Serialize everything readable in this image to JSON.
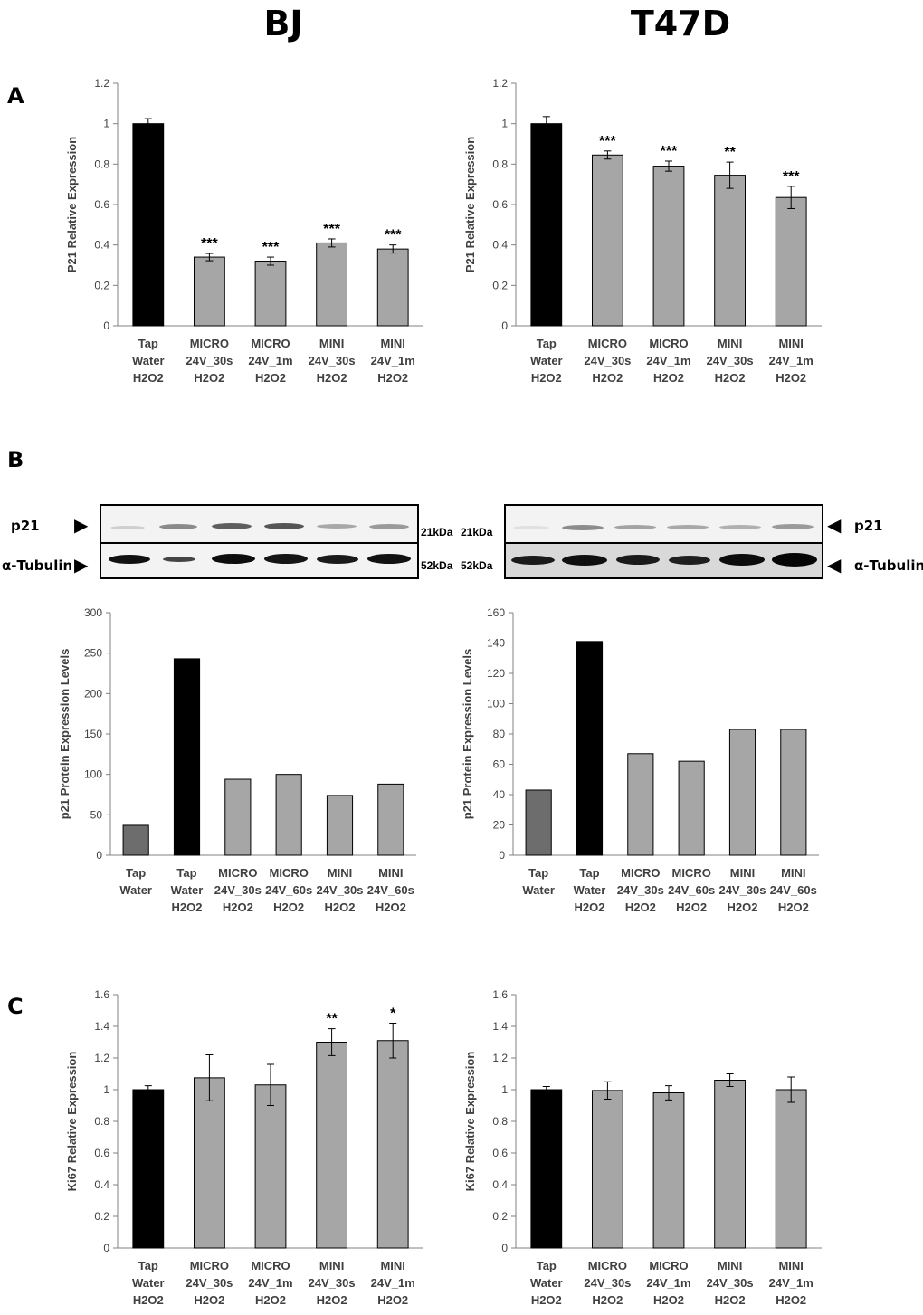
{
  "titles": {
    "left": "BJ",
    "right": "T47D"
  },
  "panels": {
    "a": "A",
    "b": "B",
    "c": "C"
  },
  "blots": {
    "left": {
      "p21_label": "p21",
      "tubulin_label": "α-Tubulin",
      "kda_top": "21kDa",
      "kda_bottom": "52kDa"
    },
    "right": {
      "p21_label": "p21",
      "tubulin_label": "α-Tubulin",
      "kda_top": "21kDa",
      "kda_bottom": "52kDa"
    }
  },
  "chart_data": [
    {
      "id": "A-BJ",
      "type": "bar",
      "ylabel": "P21 Relative Expression",
      "ylim": [
        0,
        1.2
      ],
      "yticks": [
        "0",
        "0.2",
        "0.4",
        "0.6",
        "0.8",
        "1",
        "1.2"
      ],
      "categories": [
        [
          "Tap",
          "Water",
          "H2O2"
        ],
        [
          "MICRO",
          "24V_30s",
          "H2O2"
        ],
        [
          "MICRO",
          "24V_1m",
          "H2O2"
        ],
        [
          "MINI",
          "24V_30s",
          "H2O2"
        ],
        [
          "MINI",
          "24V_1m",
          "H2O2"
        ]
      ],
      "values": [
        1.0,
        0.34,
        0.32,
        0.41,
        0.38
      ],
      "errors": [
        0.025,
        0.018,
        0.02,
        0.02,
        0.02
      ],
      "annotations": [
        "",
        "***",
        "***",
        "***",
        "***"
      ],
      "colors": [
        "#000000",
        "#a6a6a6",
        "#a6a6a6",
        "#a6a6a6",
        "#a6a6a6"
      ]
    },
    {
      "id": "A-T47D",
      "type": "bar",
      "ylabel": "P21 Relative Expression",
      "ylim": [
        0,
        1.2
      ],
      "yticks": [
        "0",
        "0.2",
        "0.4",
        "0.6",
        "0.8",
        "1",
        "1.2"
      ],
      "categories": [
        [
          "Tap",
          "Water",
          "H2O2"
        ],
        [
          "MICRO",
          "24V_30s",
          "H2O2"
        ],
        [
          "MICRO",
          "24V_1m",
          "H2O2"
        ],
        [
          "MINI",
          "24V_30s",
          "H2O2"
        ],
        [
          "MINI",
          "24V_1m",
          "H2O2"
        ]
      ],
      "values": [
        1.0,
        0.845,
        0.79,
        0.745,
        0.635
      ],
      "errors": [
        0.035,
        0.02,
        0.025,
        0.065,
        0.055
      ],
      "annotations": [
        "",
        "***",
        "***",
        "**",
        "***"
      ],
      "colors": [
        "#000000",
        "#a6a6a6",
        "#a6a6a6",
        "#a6a6a6",
        "#a6a6a6"
      ]
    },
    {
      "id": "B-BJ",
      "type": "bar",
      "ylabel": "p21 Protein Expression Levels",
      "ylim": [
        0,
        300
      ],
      "yticks": [
        "0",
        "50",
        "100",
        "150",
        "200",
        "250",
        "300"
      ],
      "categories": [
        [
          "Tap",
          "Water"
        ],
        [
          "Tap",
          "Water",
          "H2O2"
        ],
        [
          "MICRO",
          "24V_30s",
          "H2O2"
        ],
        [
          "MICRO",
          "24V_60s",
          "H2O2"
        ],
        [
          "MINI",
          "24V_30s",
          "H2O2"
        ],
        [
          "MINI",
          "24V_60s",
          "H2O2"
        ]
      ],
      "values": [
        37,
        243,
        94,
        100,
        74,
        88
      ],
      "colors": [
        "#6d6d6d",
        "#000000",
        "#a6a6a6",
        "#a6a6a6",
        "#a6a6a6",
        "#a6a6a6"
      ]
    },
    {
      "id": "B-T47D",
      "type": "bar",
      "ylabel": "p21 Protein Expression Levels",
      "ylim": [
        0,
        160
      ],
      "yticks": [
        "0",
        "20",
        "40",
        "60",
        "80",
        "100",
        "120",
        "140",
        "160"
      ],
      "categories": [
        [
          "Tap",
          "Water"
        ],
        [
          "Tap",
          "Water",
          "H2O2"
        ],
        [
          "MICRO",
          "24V_30s",
          "H2O2"
        ],
        [
          "MICRO",
          "24V_60s",
          "H2O2"
        ],
        [
          "MINI",
          "24V_30s",
          "H2O2"
        ],
        [
          "MINI",
          "24V_60s",
          "H2O2"
        ]
      ],
      "values": [
        43,
        141,
        67,
        62,
        83,
        83
      ],
      "colors": [
        "#6d6d6d",
        "#000000",
        "#a6a6a6",
        "#a6a6a6",
        "#a6a6a6",
        "#a6a6a6"
      ]
    },
    {
      "id": "C-BJ",
      "type": "bar",
      "ylabel": "Ki67 Relative Expression",
      "ylim": [
        0,
        1.6
      ],
      "yticks": [
        "0",
        "0.2",
        "0.4",
        "0.6",
        "0.8",
        "1",
        "1.2",
        "1.4",
        "1.6"
      ],
      "categories": [
        [
          "Tap",
          "Water",
          "H2O2"
        ],
        [
          "MICRO",
          "24V_30s",
          "H2O2"
        ],
        [
          "MICRO",
          "24V_1m",
          "H2O2"
        ],
        [
          "MINI",
          "24V_30s",
          "H2O2"
        ],
        [
          "MINI",
          "24V_1m",
          "H2O2"
        ]
      ],
      "values": [
        1.0,
        1.075,
        1.03,
        1.3,
        1.31
      ],
      "errors": [
        0.025,
        0.145,
        0.13,
        0.085,
        0.11
      ],
      "annotations": [
        "",
        "",
        "",
        "**",
        "*"
      ],
      "colors": [
        "#000000",
        "#a6a6a6",
        "#a6a6a6",
        "#a6a6a6",
        "#a6a6a6"
      ]
    },
    {
      "id": "C-T47D",
      "type": "bar",
      "ylabel": "Ki67 Relative Expression",
      "ylim": [
        0,
        1.6
      ],
      "yticks": [
        "0",
        "0.2",
        "0.4",
        "0.6",
        "0.8",
        "1",
        "1.2",
        "1.4",
        "1.6"
      ],
      "categories": [
        [
          "Tap",
          "Water",
          "H2O2"
        ],
        [
          "MICRO",
          "24V_30s",
          "H2O2"
        ],
        [
          "MICRO",
          "24V_1m",
          "H2O2"
        ],
        [
          "MINI",
          "24V_30s",
          "H2O2"
        ],
        [
          "MINI",
          "24V_1m",
          "H2O2"
        ]
      ],
      "values": [
        1.0,
        0.995,
        0.98,
        1.06,
        1.0
      ],
      "errors": [
        0.02,
        0.055,
        0.045,
        0.04,
        0.08
      ],
      "annotations": [
        "",
        "",
        "",
        "",
        ""
      ],
      "colors": [
        "#000000",
        "#a6a6a6",
        "#a6a6a6",
        "#a6a6a6",
        "#a6a6a6"
      ]
    }
  ]
}
